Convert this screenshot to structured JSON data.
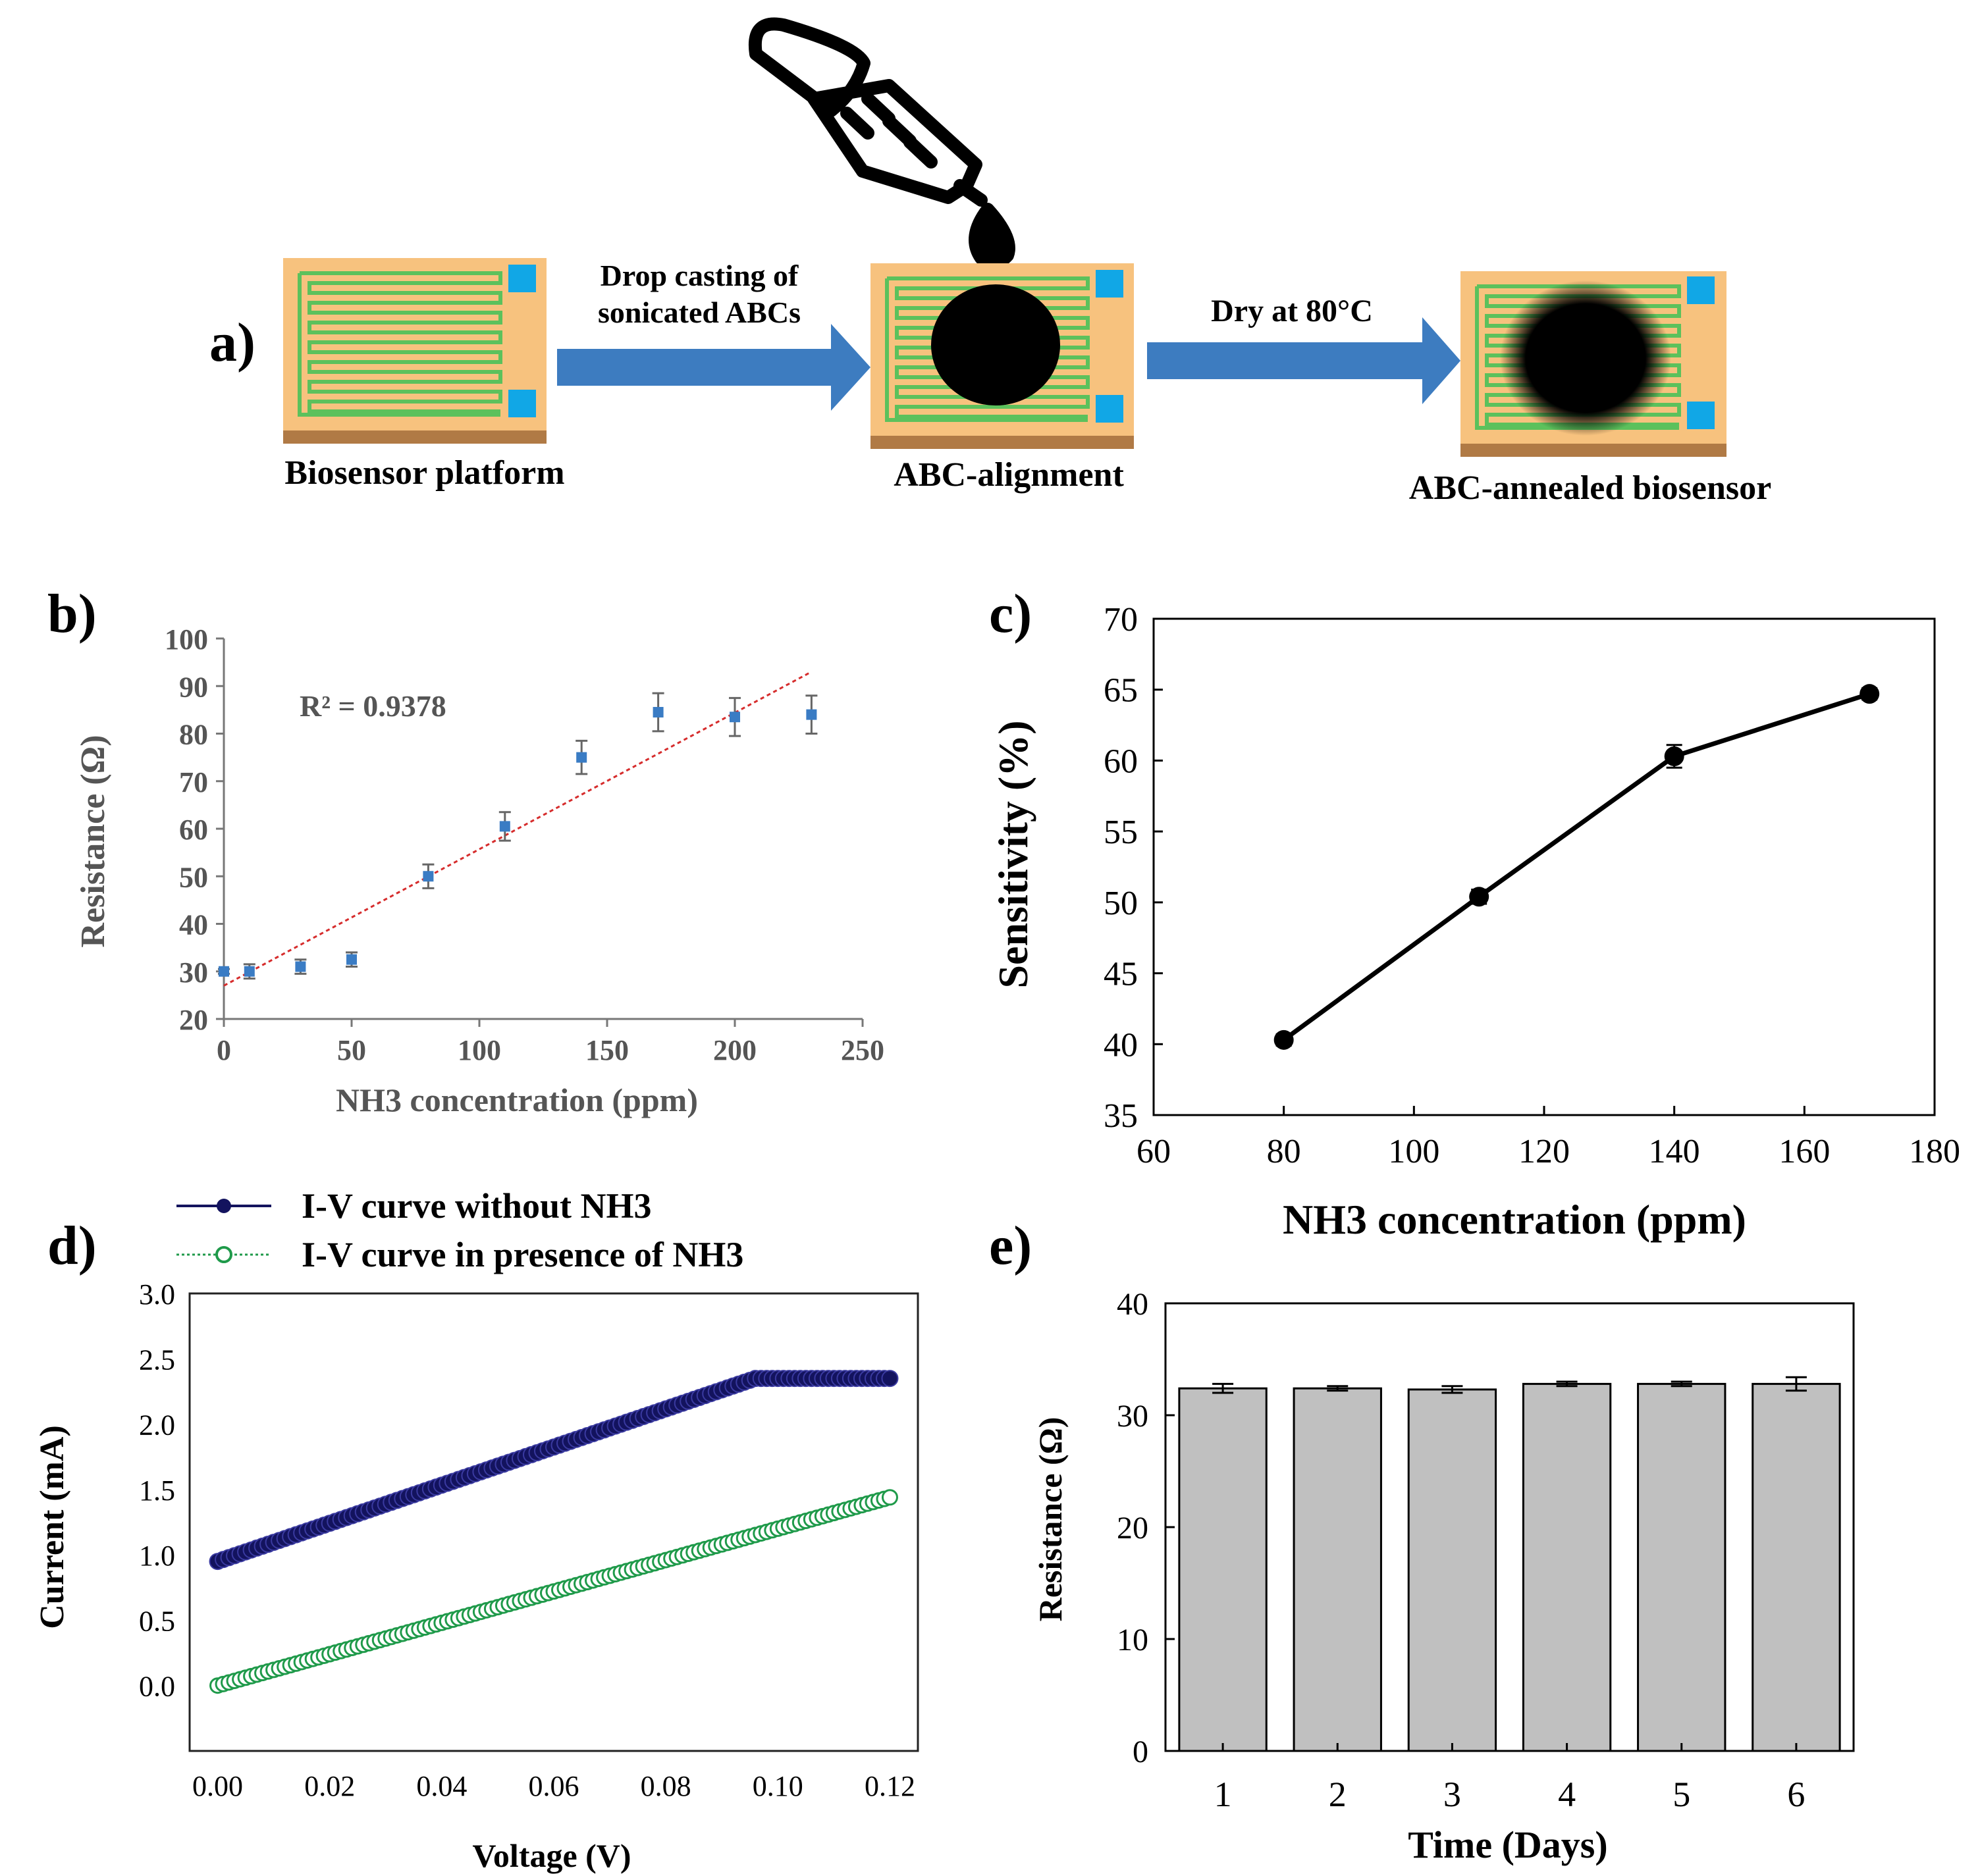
{
  "panel_a": {
    "panel_label": "a)",
    "step1_label": "Biosensor platform",
    "arrow1_label_line1": "Drop casting of",
    "arrow1_label_line2": "sonicated ABCs",
    "step2_label": "ABC-alignment",
    "arrow2_label": "Dry at 80°C",
    "step3_label": "ABC-annealed biosensor",
    "icons": [
      "dropper-icon",
      "biosensor-chip-icon",
      "process-arrow-icon"
    ]
  },
  "colors": {
    "chip_body": "#f7c27e",
    "chip_base": "#b07a45",
    "electrode": "#5cc15c",
    "pad": "#11a7e6",
    "arrow": "#3d7cc0",
    "blue_point": "#3a7cc4",
    "trend": "#d62c2c",
    "navy": "#13135e",
    "green": "#1f9a4a",
    "bar": "#c0c0c0",
    "axis": "#000000",
    "grey_text": "#555555"
  },
  "chart_data": [
    {
      "panel": "b)",
      "type": "scatter",
      "xlabel": "NH3 concentration (ppm)",
      "ylabel": "Resistance (Ω)",
      "xlim": [
        0,
        250
      ],
      "ylim": [
        20,
        100
      ],
      "xticks": [
        0,
        50,
        100,
        150,
        200,
        250
      ],
      "yticks": [
        20,
        30,
        40,
        50,
        60,
        70,
        80,
        90,
        100
      ],
      "annotation": "R² = 0.9378",
      "x": [
        0,
        10,
        30,
        50,
        80,
        110,
        140,
        170,
        200,
        230
      ],
      "y": [
        30,
        30,
        31,
        32.5,
        50,
        60.5,
        75,
        84.5,
        83.5,
        84
      ],
      "err": [
        0.5,
        1.5,
        1.5,
        1.5,
        2.5,
        3,
        3.5,
        4,
        4,
        4
      ],
      "trendline": {
        "x0": 0,
        "y0": 27,
        "x1": 230,
        "y1": 93
      }
    },
    {
      "panel": "c)",
      "type": "line",
      "xlabel": "NH3 concentration (ppm)",
      "ylabel": "Sensitivity (%)",
      "xlim": [
        60,
        180
      ],
      "ylim": [
        35,
        70
      ],
      "xticks": [
        60,
        80,
        100,
        120,
        140,
        160,
        180
      ],
      "yticks": [
        35,
        40,
        45,
        50,
        55,
        60,
        65,
        70
      ],
      "x": [
        80,
        110,
        140,
        170
      ],
      "y": [
        40.3,
        50.4,
        60.3,
        64.7
      ],
      "err": [
        0.4,
        0.5,
        0.8,
        0.4
      ]
    },
    {
      "panel": "d)",
      "type": "line",
      "xlabel": "Voltage (V)",
      "ylabel": "Current (mA)",
      "xlim": [
        -0.005,
        0.125
      ],
      "ylim": [
        -0.5,
        3.0
      ],
      "xticks": [
        "0.00",
        "0.02",
        "0.04",
        "0.06",
        "0.08",
        "0.10",
        "0.12"
      ],
      "yticks": [
        "0.0",
        "0.5",
        "1.0",
        "1.5",
        "2.0",
        "2.5",
        "3.0"
      ],
      "series": [
        {
          "name": "I-V curve without NH3",
          "x": [
            0,
            0.096,
            0.12
          ],
          "y": [
            0.95,
            2.35,
            2.35
          ]
        },
        {
          "name": "I-V curve in presence of NH3",
          "x": [
            0,
            0.12
          ],
          "y": [
            0.0,
            1.44
          ]
        }
      ]
    },
    {
      "panel": "e)",
      "type": "bar",
      "xlabel": "Time (Days)",
      "ylabel": "Resistance (Ω)",
      "ylim": [
        0,
        40
      ],
      "yticks": [
        0,
        10,
        20,
        30,
        40
      ],
      "categories": [
        "1",
        "2",
        "3",
        "4",
        "5",
        "6"
      ],
      "values": [
        32.4,
        32.4,
        32.3,
        32.8,
        32.8,
        32.8
      ],
      "err": [
        0.4,
        0.2,
        0.3,
        0.2,
        0.2,
        0.6
      ]
    }
  ]
}
